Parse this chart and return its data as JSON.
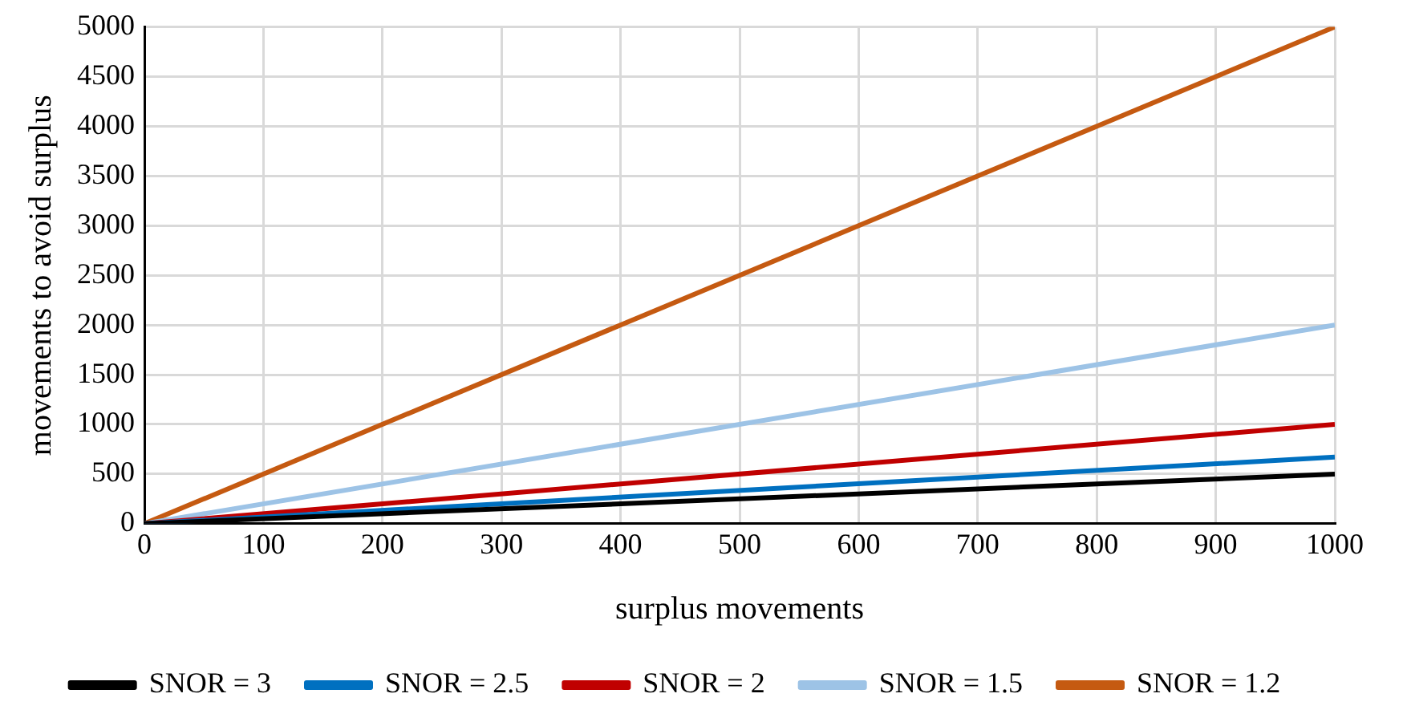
{
  "chart_data": {
    "type": "line",
    "xlabel": "surplus movements",
    "ylabel": "movements to avoid surplus",
    "x": [
      0,
      1000
    ],
    "series": [
      {
        "name": "SNOR = 3",
        "color": "#000000",
        "values": [
          0,
          500
        ]
      },
      {
        "name": "SNOR = 2.5",
        "color": "#0070c0",
        "values": [
          0,
          670
        ]
      },
      {
        "name": "SNOR = 2",
        "color": "#c00000",
        "values": [
          0,
          1000
        ]
      },
      {
        "name": "SNOR = 1.5",
        "color": "#9dc3e6",
        "values": [
          0,
          2000
        ]
      },
      {
        "name": "SNOR = 1.2",
        "color": "#c55a11",
        "values": [
          0,
          5000
        ]
      }
    ],
    "xlim": [
      0,
      1000
    ],
    "xticks": [
      0,
      100,
      200,
      300,
      400,
      500,
      600,
      700,
      800,
      900,
      1000
    ],
    "ylim": [
      0,
      5000
    ],
    "yticks": [
      0,
      500,
      1000,
      1500,
      2000,
      2500,
      3000,
      3500,
      4000,
      4500,
      5000
    ],
    "grid": true,
    "legend": "bottom",
    "marker": "none",
    "line_style": "solid"
  }
}
